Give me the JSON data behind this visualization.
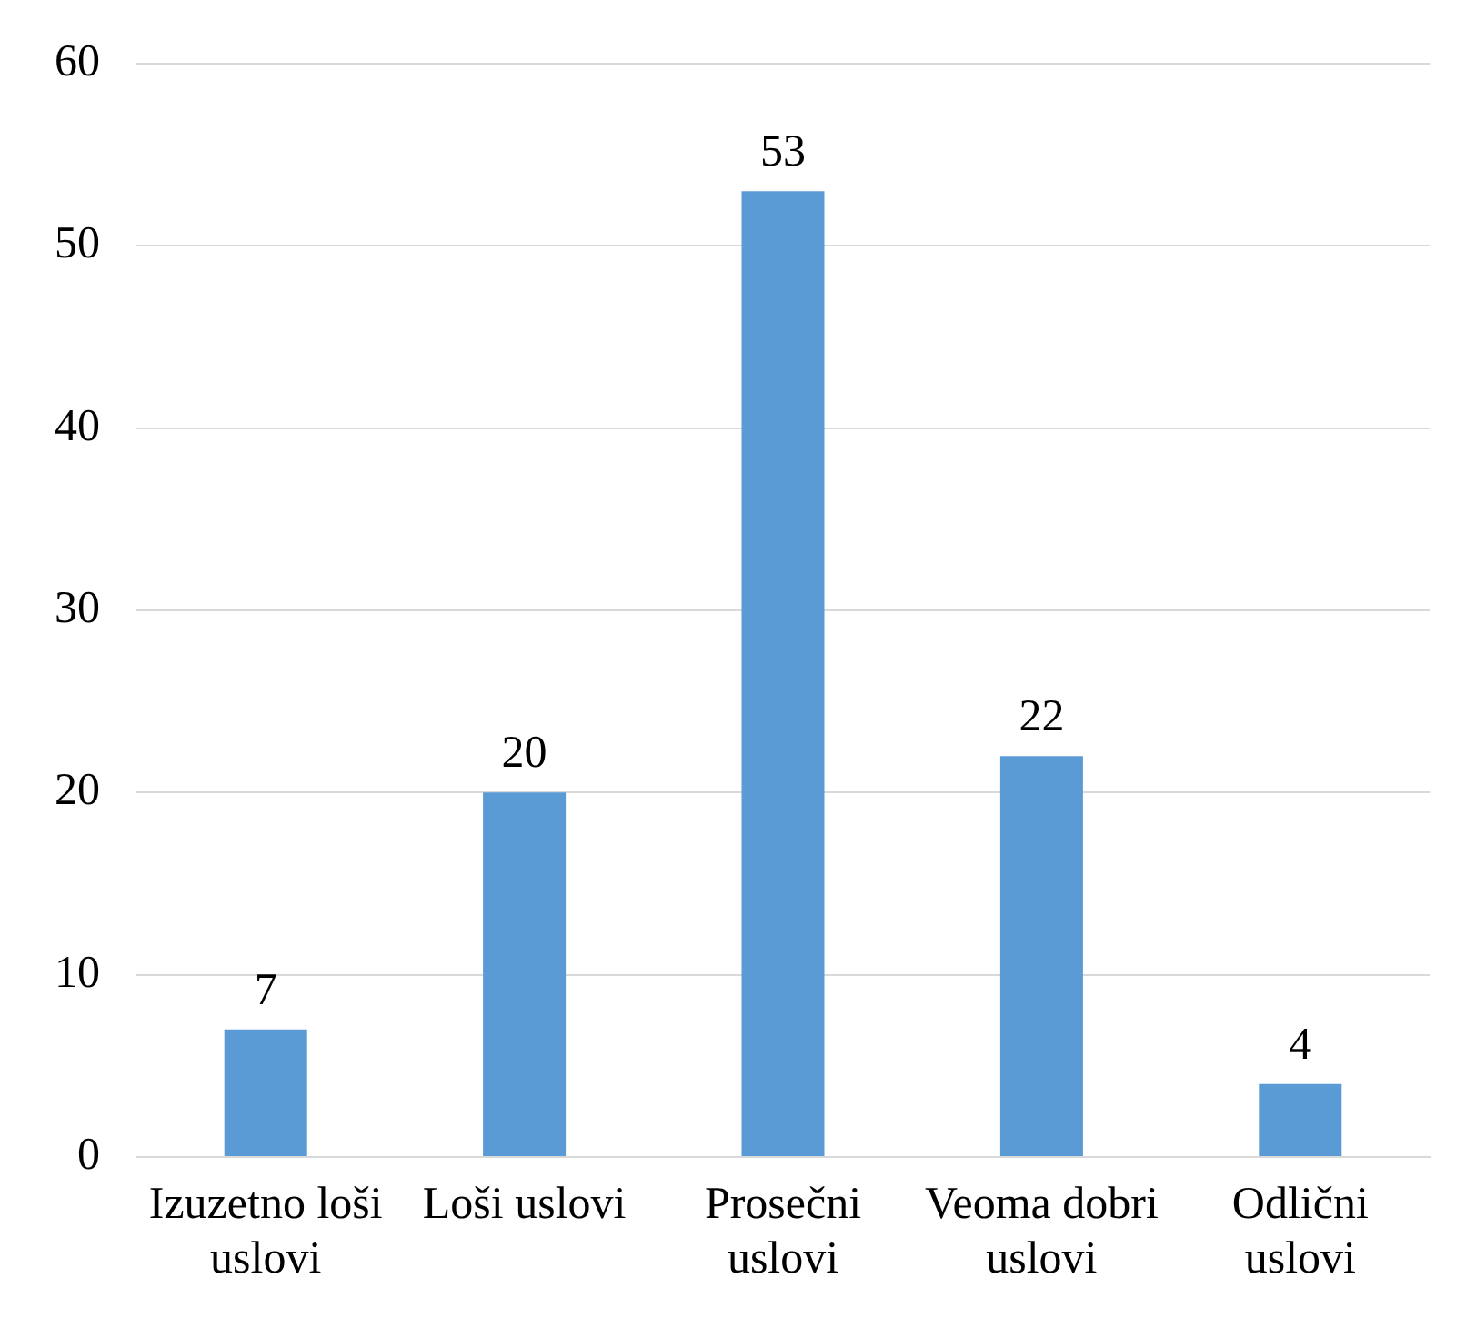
{
  "chart_data": {
    "type": "bar",
    "categories": [
      "Izuzetno loši uslovi",
      "Loši uslovi",
      "Prosečni uslovi",
      "Veoma dobri uslovi",
      "Odlični uslovi"
    ],
    "values": [
      7,
      20,
      53,
      22,
      4
    ],
    "color": "#5b9bd5",
    "ylim": [
      0,
      60
    ],
    "yticks": [
      0,
      10,
      20,
      30,
      40,
      50,
      60
    ],
    "grid": "y",
    "legend": false,
    "data_labels": true
  }
}
